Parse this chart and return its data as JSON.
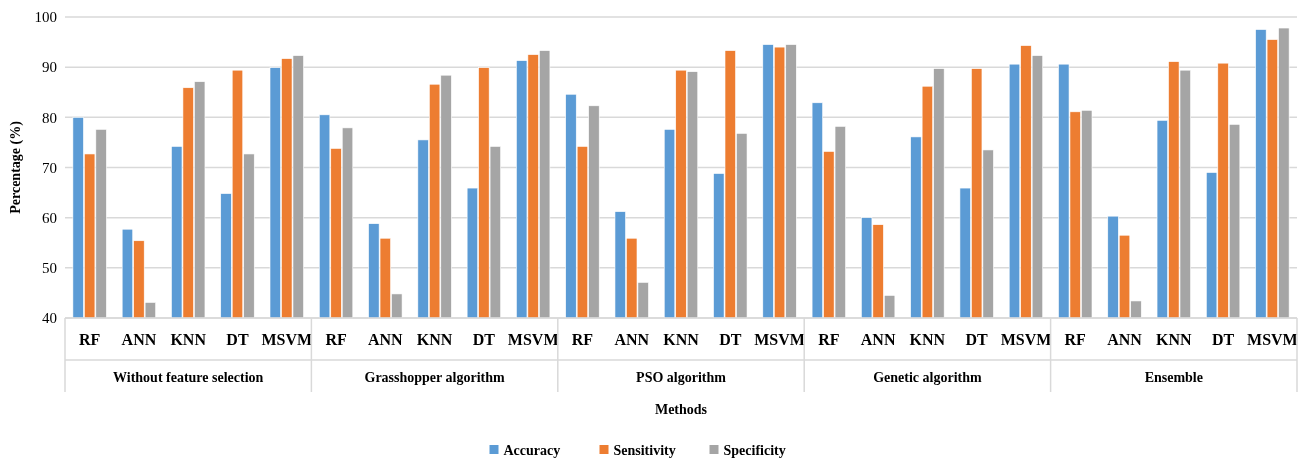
{
  "chart_data": {
    "type": "bar",
    "xlabel": "Methods",
    "ylabel": "Percentage (%)",
    "categories": [
      "RF",
      "ANN",
      "KNN",
      "DT",
      "MSVM",
      "RF",
      "ANN",
      "KNN",
      "DT",
      "MSVM",
      "RF",
      "ANN",
      "KNN",
      "DT",
      "MSVM",
      "RF",
      "ANN",
      "KNN",
      "DT",
      "MSVM",
      "RF",
      "ANN",
      "KNN",
      "DT",
      "MSVM"
    ],
    "annotations": [
      "Without feature selection",
      "Grasshopper algorithm",
      "PSO algorithm",
      "Genetic algorithm",
      "Ensemble"
    ],
    "series": [
      {
        "name": "Accuracy",
        "color": "#5b9bd5",
        "values": [
          80.0,
          57.7,
          74.2,
          64.8,
          89.9,
          80.5,
          58.8,
          75.5,
          65.9,
          91.3,
          84.6,
          61.2,
          77.6,
          68.8,
          94.5,
          82.9,
          60.0,
          76.1,
          65.9,
          90.6,
          90.6,
          60.3,
          79.4,
          69.0,
          97.5
        ]
      },
      {
        "name": "Sensitivity",
        "color": "#ed7d31",
        "values": [
          72.7,
          55.4,
          85.9,
          89.4,
          91.7,
          73.8,
          55.9,
          86.6,
          89.9,
          92.5,
          74.2,
          55.9,
          89.4,
          93.3,
          94.0,
          73.2,
          58.6,
          86.2,
          89.7,
          94.3,
          81.1,
          56.5,
          91.1,
          90.8,
          95.5
        ]
      },
      {
        "name": "Specificity",
        "color": "#a5a5a5",
        "values": [
          77.6,
          43.1,
          87.1,
          72.7,
          92.3,
          77.9,
          44.8,
          88.4,
          74.2,
          93.3,
          82.3,
          47.1,
          89.1,
          76.8,
          94.5,
          78.2,
          44.5,
          89.7,
          73.5,
          92.3,
          81.4,
          43.4,
          89.4,
          78.6,
          97.8
        ]
      }
    ],
    "ylim": [
      40,
      100
    ],
    "yticks": [
      40,
      50,
      60,
      70,
      80,
      90,
      100
    ],
    "grid": "y",
    "legend": "bottom"
  }
}
